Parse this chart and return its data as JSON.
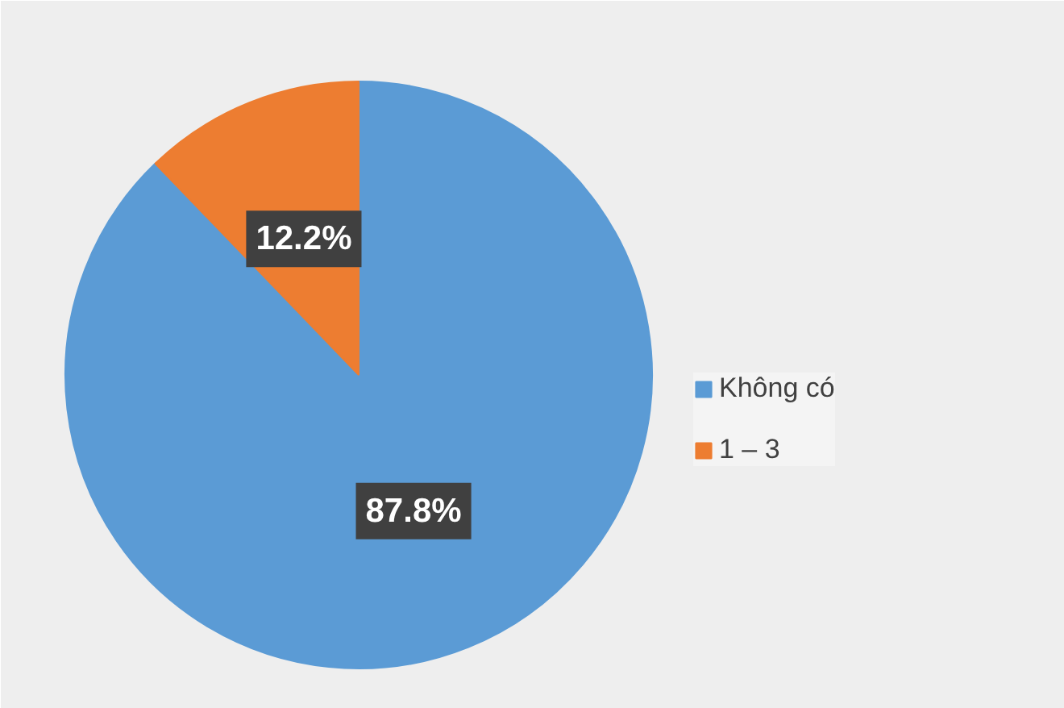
{
  "chart_data": {
    "type": "pie",
    "categories": [
      "Không có",
      "1 – 3"
    ],
    "values": [
      87.8,
      12.2
    ],
    "colors": [
      "#5b9bd5",
      "#ed7d31"
    ],
    "value_labels": [
      "87.8%",
      "12.2%"
    ],
    "legend": "right"
  }
}
